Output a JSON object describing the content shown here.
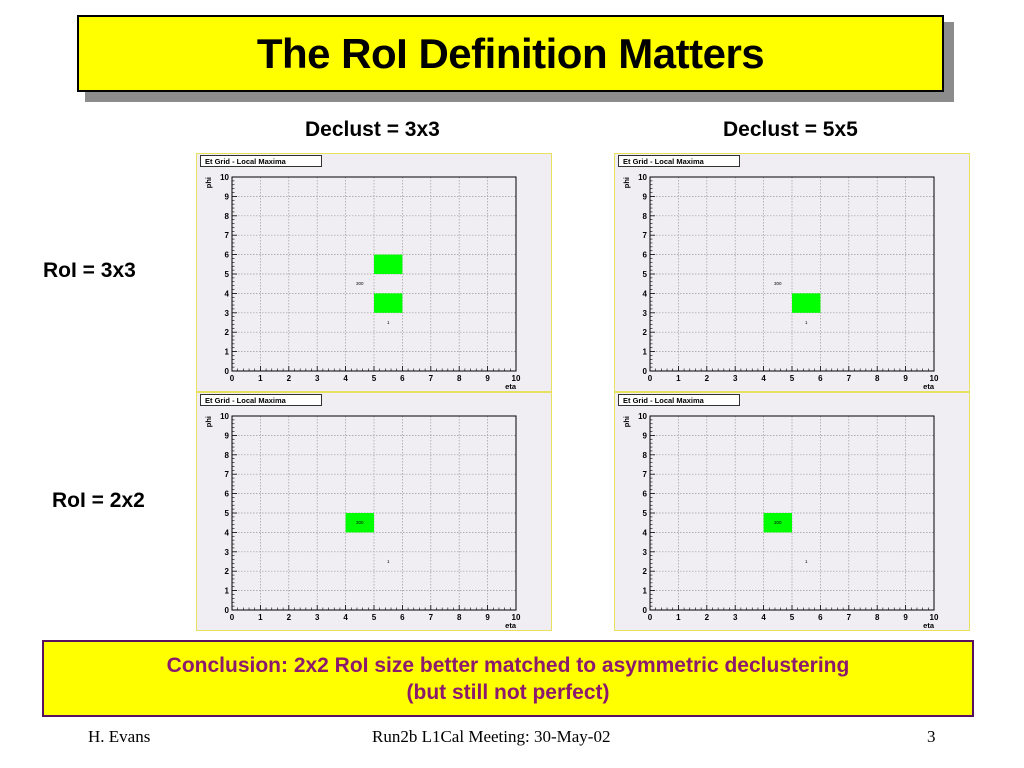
{
  "title": "The RoI Definition Matters",
  "column_labels": [
    "Declust = 3x3",
    "Declust = 5x5"
  ],
  "row_labels": [
    "RoI = 3x3",
    "RoI = 2x2"
  ],
  "conclusion": {
    "line1": "Conclusion: 2x2 RoI size better matched to asymmetric declustering",
    "line2": "(but still not perfect)"
  },
  "footer": {
    "author": "H. Evans",
    "meeting": "Run2b L1Cal Meeting: 30-May-02",
    "page": "3"
  },
  "colors": {
    "title_bg": "#ffff00",
    "cell_fill": "#00ff00",
    "conclusion_text": "#8b1a6e",
    "plot_bg": "#f0eef2"
  },
  "chart_data": [
    {
      "type": "heatmap",
      "title": "Et Grid - Local Maxima",
      "xlabel": "eta",
      "ylabel": "phi",
      "xlim": [
        0,
        10
      ],
      "ylim": [
        0,
        10
      ],
      "x_ticks": [
        "0",
        "1",
        "2",
        "3",
        "4",
        "5",
        "6",
        "7",
        "8",
        "9",
        "10"
      ],
      "y_ticks": [
        "0",
        "1",
        "2",
        "3",
        "4",
        "5",
        "6",
        "7",
        "8",
        "9",
        "10"
      ],
      "grid": true,
      "cells": [
        {
          "x": [
            5,
            6
          ],
          "y": [
            5,
            6
          ],
          "fill": "#00ff00"
        },
        {
          "x": [
            5,
            6
          ],
          "y": [
            3,
            4
          ],
          "fill": "#00ff00"
        }
      ],
      "annotations": [
        {
          "text": "300",
          "x": 4.5,
          "y": 4.5
        },
        {
          "text": "1",
          "x": 5.5,
          "y": 2.5
        }
      ]
    },
    {
      "type": "heatmap",
      "title": "Et Grid - Local Maxima",
      "xlabel": "eta",
      "ylabel": "phi",
      "xlim": [
        0,
        10
      ],
      "ylim": [
        0,
        10
      ],
      "x_ticks": [
        "0",
        "1",
        "2",
        "3",
        "4",
        "5",
        "6",
        "7",
        "8",
        "9",
        "10"
      ],
      "y_ticks": [
        "0",
        "1",
        "2",
        "3",
        "4",
        "5",
        "6",
        "7",
        "8",
        "9",
        "10"
      ],
      "grid": true,
      "cells": [
        {
          "x": [
            5,
            6
          ],
          "y": [
            3,
            4
          ],
          "fill": "#00ff00"
        }
      ],
      "annotations": [
        {
          "text": "300",
          "x": 4.5,
          "y": 4.5
        },
        {
          "text": "1",
          "x": 5.5,
          "y": 2.5
        }
      ]
    },
    {
      "type": "heatmap",
      "title": "Et Grid - Local Maxima",
      "xlabel": "eta",
      "ylabel": "phi",
      "xlim": [
        0,
        10
      ],
      "ylim": [
        0,
        10
      ],
      "x_ticks": [
        "0",
        "1",
        "2",
        "3",
        "4",
        "5",
        "6",
        "7",
        "8",
        "9",
        "10"
      ],
      "y_ticks": [
        "0",
        "1",
        "2",
        "3",
        "4",
        "5",
        "6",
        "7",
        "8",
        "9",
        "10"
      ],
      "grid": true,
      "cells": [
        {
          "x": [
            4,
            5
          ],
          "y": [
            4,
            5
          ],
          "fill": "#00ff00"
        }
      ],
      "annotations": [
        {
          "text": "300",
          "x": 4.5,
          "y": 4.5
        },
        {
          "text": "1",
          "x": 5.5,
          "y": 2.5
        }
      ]
    },
    {
      "type": "heatmap",
      "title": "Et Grid - Local Maxima",
      "xlabel": "eta",
      "ylabel": "phi",
      "xlim": [
        0,
        10
      ],
      "ylim": [
        0,
        10
      ],
      "x_ticks": [
        "0",
        "1",
        "2",
        "3",
        "4",
        "5",
        "6",
        "7",
        "8",
        "9",
        "10"
      ],
      "y_ticks": [
        "0",
        "1",
        "2",
        "3",
        "4",
        "5",
        "6",
        "7",
        "8",
        "9",
        "10"
      ],
      "grid": true,
      "cells": [
        {
          "x": [
            4,
            5
          ],
          "y": [
            4,
            5
          ],
          "fill": "#00ff00"
        }
      ],
      "annotations": [
        {
          "text": "300",
          "x": 4.5,
          "y": 4.5
        },
        {
          "text": "1",
          "x": 5.5,
          "y": 2.5
        }
      ]
    }
  ]
}
